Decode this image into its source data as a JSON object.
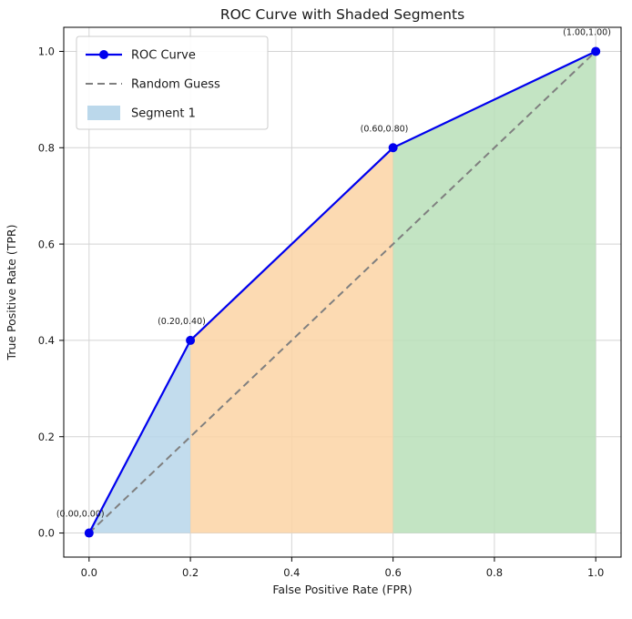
{
  "chart_data": {
    "type": "line",
    "title": "ROC Curve with Shaded Segments",
    "xlabel": "False Positive Rate (FPR)",
    "ylabel": "True Positive Rate (TPR)",
    "xlim": [
      -0.05,
      1.05
    ],
    "ylim": [
      -0.05,
      1.05
    ],
    "grid": true,
    "xticks": [
      0.0,
      0.2,
      0.4,
      0.6,
      0.8,
      1.0
    ],
    "yticks": [
      0.0,
      0.2,
      0.4,
      0.6,
      0.8,
      1.0
    ],
    "xtick_labels": [
      "0.0",
      "0.2",
      "0.4",
      "0.6",
      "0.8",
      "1.0"
    ],
    "ytick_labels": [
      "0.0",
      "0.2",
      "0.4",
      "0.6",
      "0.8",
      "1.0"
    ],
    "series": [
      {
        "name": "ROC Curve",
        "style": "solid-marker",
        "color": "#0000ee",
        "x": [
          0.0,
          0.2,
          0.6,
          1.0
        ],
        "y": [
          0.0,
          0.4,
          0.8,
          1.0
        ]
      },
      {
        "name": "Random Guess",
        "style": "dashed",
        "color": "#7f7f7f",
        "x": [
          0.0,
          1.0
        ],
        "y": [
          0.0,
          1.0
        ]
      }
    ],
    "segments": [
      {
        "id": "segment-1",
        "color": "#b7d6ea",
        "polygon": [
          [
            0.0,
            0.0
          ],
          [
            0.2,
            0.4
          ],
          [
            0.2,
            0.0
          ]
        ]
      },
      {
        "id": "segment-2",
        "color": "#fbd3a4",
        "polygon": [
          [
            0.2,
            0.0
          ],
          [
            0.2,
            0.4
          ],
          [
            0.6,
            0.8
          ],
          [
            0.6,
            0.0
          ]
        ]
      },
      {
        "id": "segment-3",
        "color": "#b9dfb9",
        "polygon": [
          [
            0.6,
            0.0
          ],
          [
            0.6,
            0.8
          ],
          [
            1.0,
            1.0
          ],
          [
            1.0,
            0.0
          ]
        ]
      }
    ],
    "annotations": [
      {
        "text": "(0.00,0.00)",
        "x": 0.0,
        "y": 0.0
      },
      {
        "text": "(0.20,0.40)",
        "x": 0.2,
        "y": 0.4
      },
      {
        "text": "(0.60,0.80)",
        "x": 0.6,
        "y": 0.8
      },
      {
        "text": "(1.00,1.00)",
        "x": 1.0,
        "y": 1.0
      }
    ],
    "legend": {
      "position": "upper-left",
      "entries": [
        {
          "label": "ROC Curve",
          "type": "line-marker",
          "color": "#0000ee"
        },
        {
          "label": "Random Guess",
          "type": "dashed-line",
          "color": "#7f7f7f"
        },
        {
          "label": "Segment 1",
          "type": "patch",
          "color": "#b7d6ea"
        }
      ]
    },
    "colors": {
      "grid": "#d4d4d4",
      "spine": "#000000",
      "background": "#ffffff"
    }
  }
}
